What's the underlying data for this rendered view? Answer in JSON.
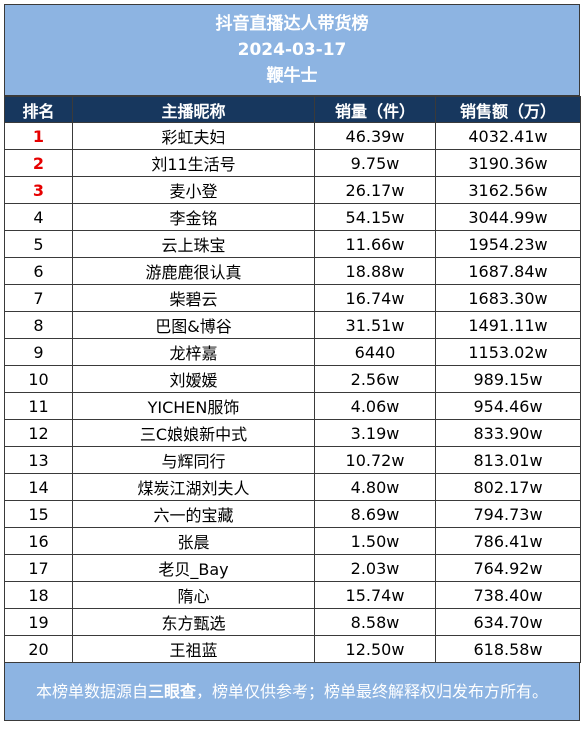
{
  "header": {
    "title": "抖音直播达人带货榜",
    "date": "2024-03-17",
    "brand": "鞭牛士"
  },
  "columns": [
    "排名",
    "主播昵称",
    "销量（件）",
    "销售额（万）"
  ],
  "rows": [
    {
      "rank": "1",
      "name": "彩虹夫妇",
      "sales": "46.39w",
      "revenue": "4032.41w"
    },
    {
      "rank": "2",
      "name": "刘11生活号",
      "sales": "9.75w",
      "revenue": "3190.36w"
    },
    {
      "rank": "3",
      "name": "麦小登",
      "sales": "26.17w",
      "revenue": "3162.56w"
    },
    {
      "rank": "4",
      "name": "李金铭",
      "sales": "54.15w",
      "revenue": "3044.99w"
    },
    {
      "rank": "5",
      "name": "云上珠宝",
      "sales": "11.66w",
      "revenue": "1954.23w"
    },
    {
      "rank": "6",
      "name": "游鹿鹿很认真",
      "sales": "18.88w",
      "revenue": "1687.84w"
    },
    {
      "rank": "7",
      "name": "柴碧云",
      "sales": "16.74w",
      "revenue": "1683.30w"
    },
    {
      "rank": "8",
      "name": "巴图&博谷",
      "sales": "31.51w",
      "revenue": "1491.11w"
    },
    {
      "rank": "9",
      "name": "龙梓嘉",
      "sales": "6440",
      "revenue": "1153.02w"
    },
    {
      "rank": "10",
      "name": "刘嫒媛",
      "sales": "2.56w",
      "revenue": "989.15w"
    },
    {
      "rank": "11",
      "name": "YICHEN服饰",
      "sales": "4.06w",
      "revenue": "954.46w"
    },
    {
      "rank": "12",
      "name": "三C娘娘新中式",
      "sales": "3.19w",
      "revenue": "833.90w"
    },
    {
      "rank": "13",
      "name": "与辉同行",
      "sales": "10.72w",
      "revenue": "813.01w"
    },
    {
      "rank": "14",
      "name": "煤炭江湖刘夫人",
      "sales": "4.80w",
      "revenue": "802.17w"
    },
    {
      "rank": "15",
      "name": "六一的宝藏",
      "sales": "8.69w",
      "revenue": "794.73w"
    },
    {
      "rank": "16",
      "name": "张晨",
      "sales": "1.50w",
      "revenue": "786.41w"
    },
    {
      "rank": "17",
      "name": "老贝_Bay",
      "sales": "2.03w",
      "revenue": "764.92w"
    },
    {
      "rank": "18",
      "name": "隋心",
      "sales": "15.74w",
      "revenue": "738.40w"
    },
    {
      "rank": "19",
      "name": "东方甄选",
      "sales": "8.58w",
      "revenue": "634.70w"
    },
    {
      "rank": "20",
      "name": "王祖蓝",
      "sales": "12.50w",
      "revenue": "618.58w"
    }
  ],
  "footer": {
    "prefix": "本榜单数据源自",
    "source": "三眼查",
    "suffix": "，榜单仅供参考；榜单最终解释权归发布方所有。"
  },
  "colors": {
    "header_bg": "#8db4e2",
    "column_header_bg": "#17375e",
    "top_rank_text": "#e60000"
  }
}
